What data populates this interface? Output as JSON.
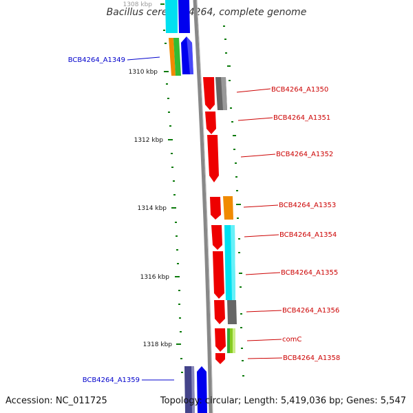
{
  "title": "Bacillus cereus B4264, complete genome",
  "accession_label": "Accession: NC_011725",
  "topology_label": "Topology: circular; Length: 5,419,036 bp; Genes: 5,547",
  "tick_labels": [
    "1308 kbp",
    "1310 kbp",
    "1312 kbp",
    "1314 kbp",
    "1316 kbp",
    "1318 kbp"
  ],
  "left_genes": [
    "BCB4264_A1349",
    "BCB4264_A1359"
  ],
  "right_genes": [
    "BCB4264_A1350",
    "BCB4264_A1351",
    "BCB4264_A1352",
    "BCB4264_A1353",
    "BCB4264_A1354",
    "BCB4264_A1355",
    "BCB4264_A1356",
    "comC",
    "BCB4264_A1358"
  ],
  "colors": {
    "backbone": "#888888",
    "tick": "#0a7a0a",
    "left_label": "#0000cc",
    "right_label": "#cc0000",
    "red": "#ee0000",
    "blue": "#0000ee",
    "cyan": "#00e0f0",
    "orange": "#f08a00",
    "green": "#33bb33",
    "gray": "#666666",
    "lime": "#88cc22",
    "navy": "#44448a"
  }
}
